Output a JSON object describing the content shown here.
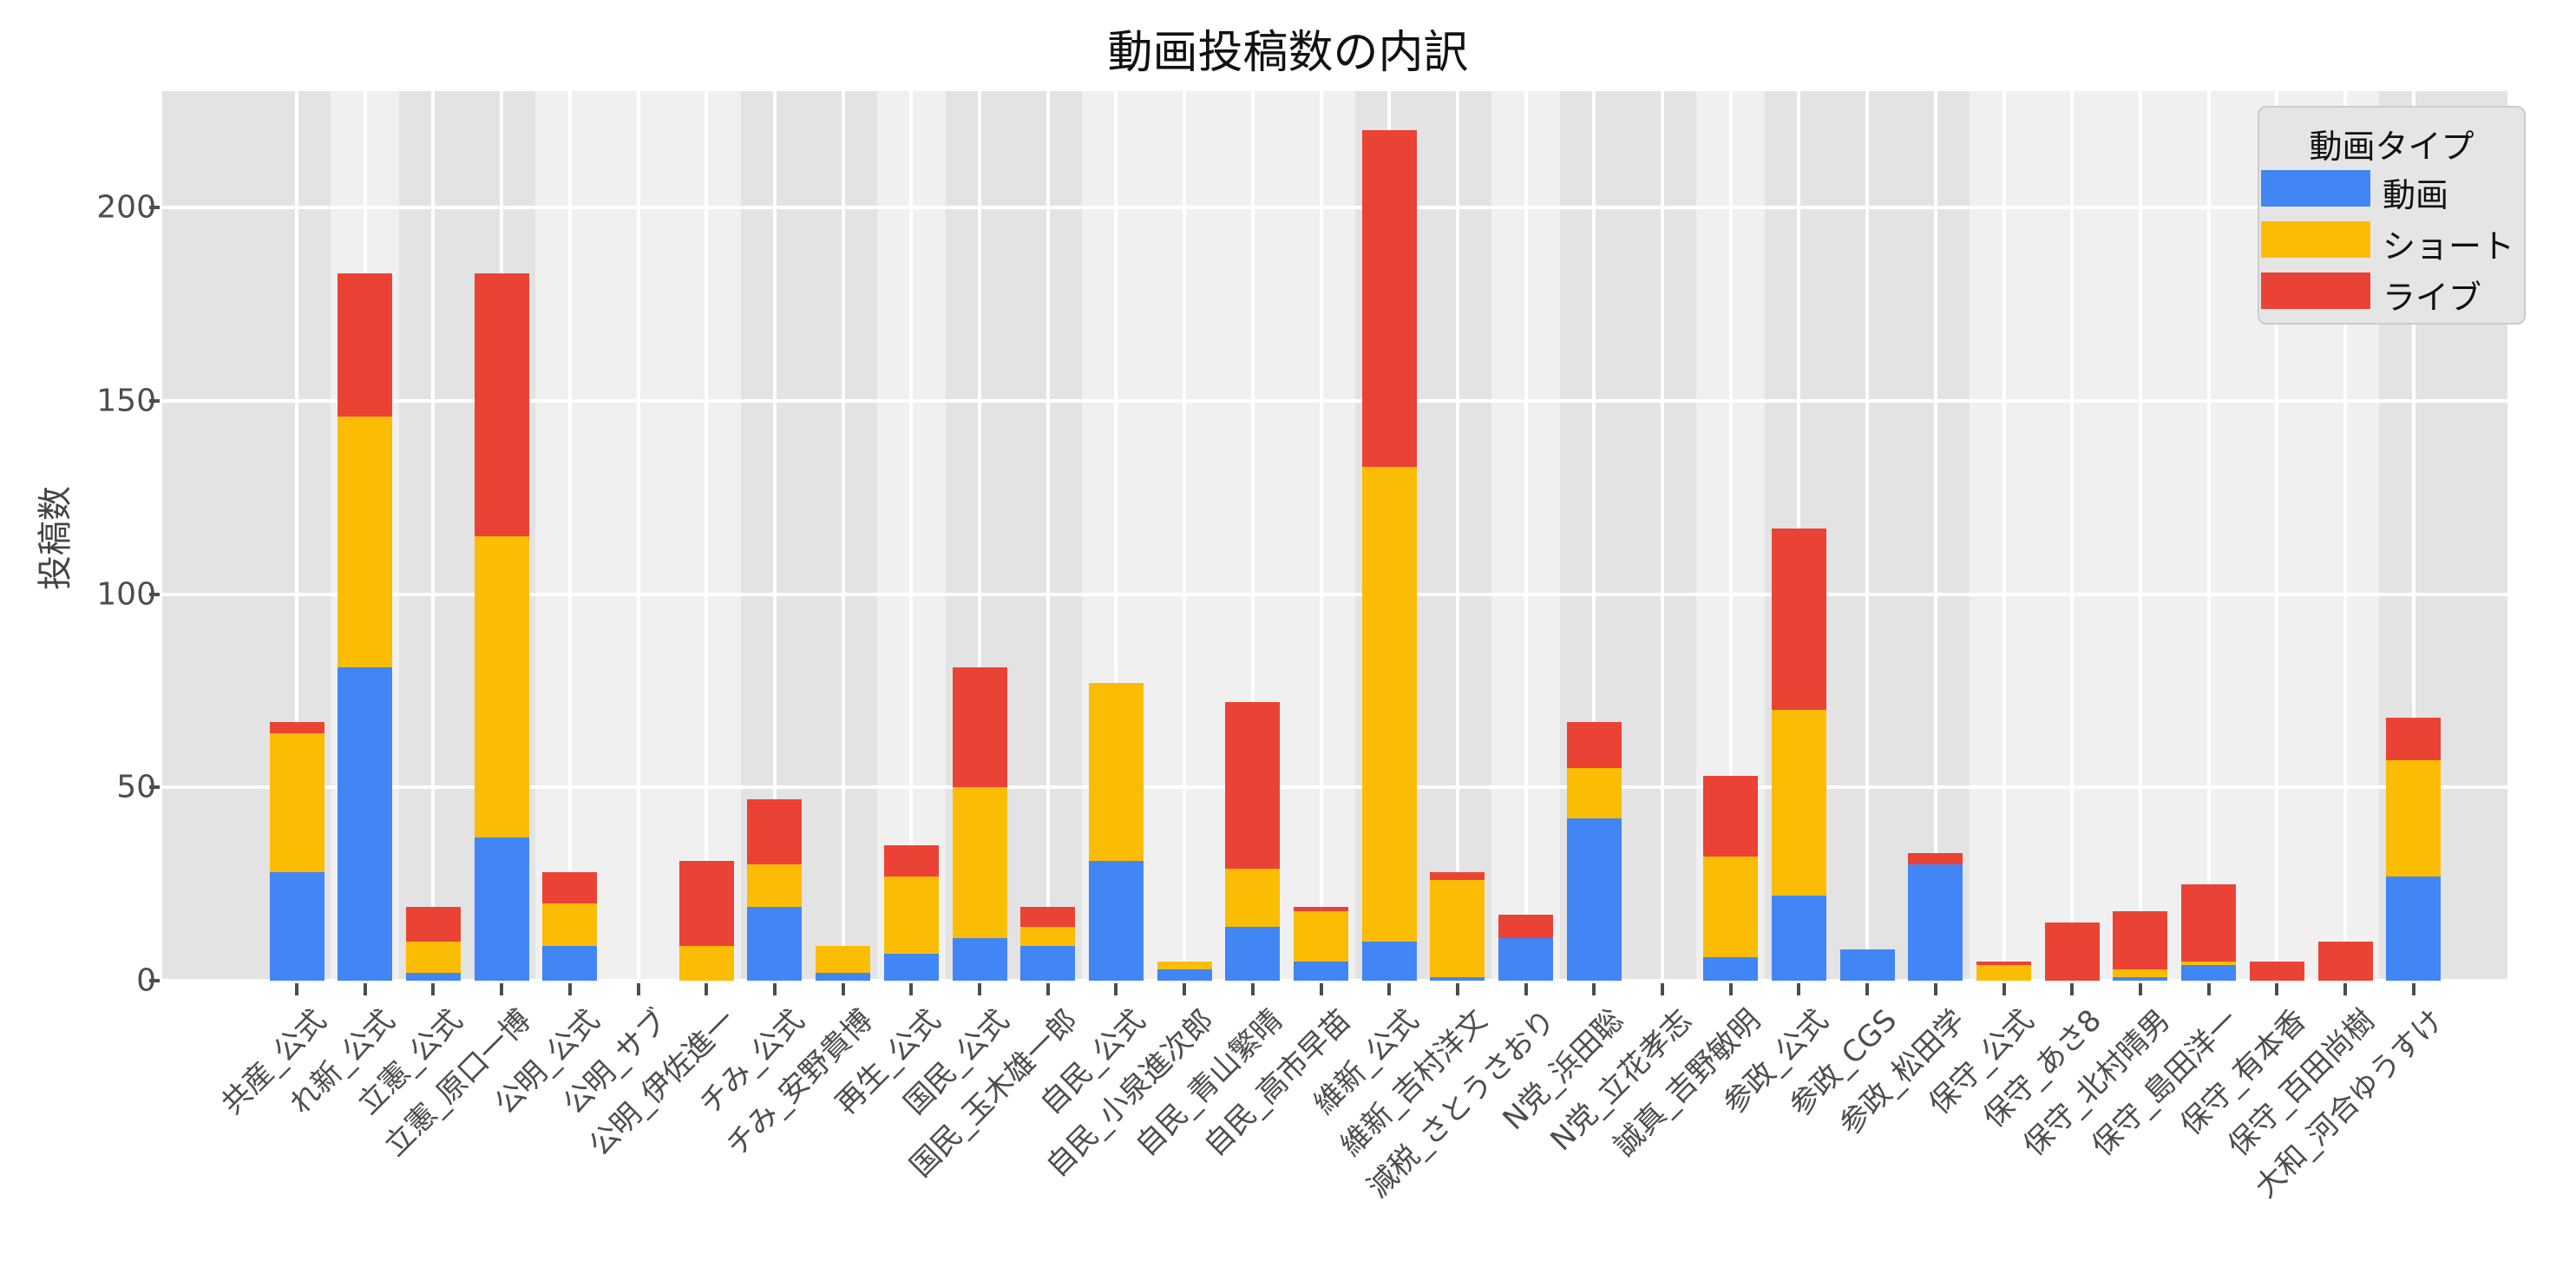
{
  "chart_data": {
    "type": "bar",
    "stacked": true,
    "title": "動画投稿数の内訳",
    "xlabel": "",
    "ylabel": "投稿数",
    "ylim": [
      0,
      231
    ],
    "yticks": [
      0,
      50,
      100,
      150,
      200
    ],
    "grid": true,
    "legend": {
      "title": "動画タイプ",
      "position": "top-right",
      "entries": [
        "動画",
        "ショート",
        "ライブ"
      ]
    },
    "colors": {
      "動画": "#4285f4",
      "ショート": "#fbbc04",
      "ライブ": "#ea4335"
    },
    "categories": [
      "共産_公式",
      "れ新_公式",
      "立憲_公式",
      "立憲_原口一博",
      "公明_公式",
      "公明_サブ",
      "公明_伊佐進一",
      "チみ_公式",
      "チみ_安野貴博",
      "再生_公式",
      "国民_公式",
      "国民_玉木雄一郎",
      "自民_公式",
      "自民_小泉進次郎",
      "自民_青山繁晴",
      "自民_高市早苗",
      "維新_公式",
      "維新_吉村洋文",
      "減税_さとうさおり",
      "N党_浜田聡",
      "N党_立花孝志",
      "誠真_吉野敏明",
      "参政_公式",
      "参政_CGS",
      "参政_松田学",
      "保守_公式",
      "保守_あさ8",
      "保守_北村晴男",
      "保守_島田洋一",
      "保守_有本香",
      "保守_百田尚樹",
      "大和_河合ゆうすけ"
    ],
    "series": [
      {
        "name": "動画",
        "color": "#4285f4",
        "values": [
          28,
          81,
          2,
          37,
          9,
          0,
          0,
          19,
          2,
          7,
          11,
          9,
          31,
          3,
          14,
          5,
          10,
          1,
          11,
          42,
          0,
          6,
          22,
          8,
          30,
          0,
          0,
          1,
          4,
          0,
          0,
          27
        ]
      },
      {
        "name": "ショート",
        "color": "#fbbc04",
        "values": [
          36,
          65,
          8,
          78,
          11,
          0,
          9,
          11,
          7,
          20,
          39,
          5,
          46,
          2,
          15,
          13,
          123,
          25,
          0,
          13,
          0,
          26,
          48,
          0,
          0,
          4,
          0,
          2,
          1,
          0,
          0,
          30
        ]
      },
      {
        "name": "ライブ",
        "color": "#ea4335",
        "values": [
          3,
          37,
          9,
          68,
          8,
          0,
          22,
          17,
          0,
          8,
          31,
          5,
          0,
          0,
          43,
          1,
          87,
          2,
          6,
          12,
          0,
          21,
          47,
          0,
          3,
          1,
          15,
          15,
          20,
          5,
          10,
          11
        ]
      }
    ],
    "party_bands": [
      {
        "party": "共産",
        "from": 0,
        "to": 0
      },
      {
        "party": "れ新",
        "from": 1,
        "to": 1
      },
      {
        "party": "立憲",
        "from": 2,
        "to": 3
      },
      {
        "party": "公明",
        "from": 4,
        "to": 6
      },
      {
        "party": "チみ",
        "from": 7,
        "to": 8
      },
      {
        "party": "再生",
        "from": 9,
        "to": 9
      },
      {
        "party": "国民",
        "from": 10,
        "to": 11
      },
      {
        "party": "自民",
        "from": 12,
        "to": 15
      },
      {
        "party": "維新",
        "from": 16,
        "to": 17
      },
      {
        "party": "減税",
        "from": 18,
        "to": 18
      },
      {
        "party": "N党",
        "from": 19,
        "to": 20
      },
      {
        "party": "誠真",
        "from": 21,
        "to": 21
      },
      {
        "party": "参政",
        "from": 22,
        "to": 24
      },
      {
        "party": "保守",
        "from": 25,
        "to": 30
      },
      {
        "party": "大和",
        "from": 31,
        "to": 31
      }
    ]
  },
  "style": {
    "band_dark": "#e3e3e3",
    "band_light": "#f0f0f0",
    "grid": "#ffffff"
  }
}
